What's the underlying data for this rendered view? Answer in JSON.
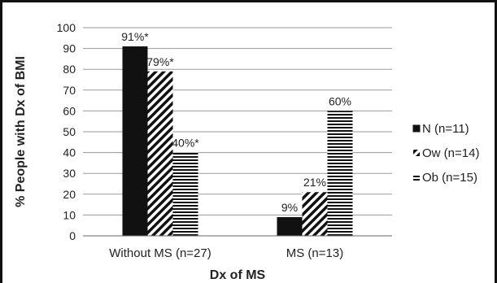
{
  "chart_data": {
    "type": "bar",
    "categories": [
      "Without MS (n=27)",
      "MS (n=13)"
    ],
    "series": [
      {
        "name": "N (n=11)",
        "values": [
          91,
          9
        ],
        "labels": [
          "91%*",
          "9%"
        ],
        "pattern": "solid"
      },
      {
        "name": "Ow (n=14)",
        "values": [
          79,
          21
        ],
        "labels": [
          "79%*",
          "21%"
        ],
        "pattern": "diagonal"
      },
      {
        "name": "Ob (n=15)",
        "values": [
          40,
          60
        ],
        "labels": [
          "40%*",
          "60%"
        ],
        "pattern": "horizontal"
      }
    ],
    "xlabel": "Dx of MS",
    "ylabel": "% People with Dx of BMI",
    "ylim": [
      0,
      100
    ],
    "yticks": [
      0,
      10,
      20,
      30,
      40,
      50,
      60,
      70,
      80,
      90,
      100
    ],
    "grid": true,
    "legend": "right"
  }
}
